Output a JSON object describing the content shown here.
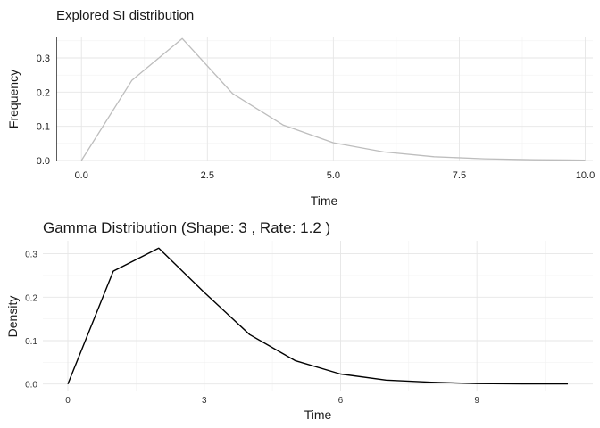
{
  "chart_data": [
    {
      "type": "line",
      "title": "Explored SI distribution",
      "xlabel": "Time",
      "ylabel": "Frequency",
      "xlim": [
        -0.5,
        10.15
      ],
      "ylim": [
        0,
        0.36
      ],
      "x_ticks": [
        0,
        2.5,
        5,
        7.5,
        10
      ],
      "x_tick_labels": [
        "0.0",
        "2.5",
        "5.0",
        "7.5",
        "10.0"
      ],
      "y_ticks": [
        0,
        0.1,
        0.2,
        0.3
      ],
      "y_tick_labels": [
        "0.0",
        "0.1",
        "0.2",
        "0.3"
      ],
      "grid": true,
      "line_color": "#bdbdbd",
      "series": [
        {
          "x": [
            0,
            1,
            2,
            3,
            4,
            5,
            6,
            7,
            8,
            9,
            10
          ],
          "values": [
            0.0,
            0.234,
            0.357,
            0.196,
            0.104,
            0.052,
            0.025,
            0.011,
            0.005,
            0.002,
            0.001
          ]
        }
      ]
    },
    {
      "type": "line",
      "title": "Gamma Distribution (Shape: 3 , Rate: 1.2 )",
      "xlabel": "Time",
      "ylabel": "Density",
      "xlim": [
        -0.55,
        11.55
      ],
      "ylim": [
        -0.015,
        0.33
      ],
      "x_ticks": [
        0,
        3,
        6,
        9
      ],
      "x_tick_labels": [
        "0",
        "3",
        "6",
        "9"
      ],
      "y_ticks": [
        0,
        0.1,
        0.2,
        0.3
      ],
      "y_tick_labels": [
        "0.0",
        "0.1",
        "0.2",
        "0.3"
      ],
      "grid": true,
      "line_color": "#000000",
      "series": [
        {
          "x": [
            0,
            1,
            2,
            3,
            4,
            5,
            6,
            7,
            8,
            9,
            10,
            11
          ],
          "values": [
            0.0,
            0.26,
            0.313,
            0.211,
            0.114,
            0.054,
            0.023,
            0.009,
            0.004,
            0.001,
            0.0005,
            0.0002
          ]
        }
      ]
    }
  ]
}
